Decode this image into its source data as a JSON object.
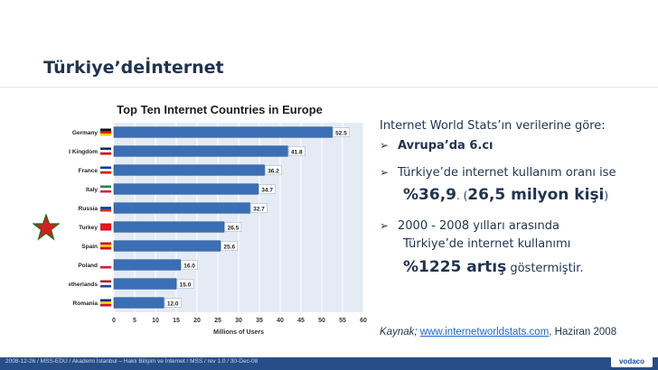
{
  "slide": {
    "title": "Türkiye’deİnternet",
    "intro": "Internet World Stats’ın verilerine göre:",
    "bullet1": "Avrupa’da 6.cı",
    "bullet2_a": "Türkiye’de internet kullanım oranı ise",
    "bullet2_big1": "%36,9",
    "bullet2_mid": ". (",
    "bullet2_big2": "26,5 milyon kişi",
    "bullet2_end": ")",
    "bullet3_a": "2000 - 2008 yılları arasında",
    "bullet3_b": "Türkiye’de internet kullanımı",
    "bullet3_big": "%1225 artış",
    "bullet3_end": " göstermiştir.",
    "source_label": "Kaynak;",
    "source_link": "www.internetworldstats.com",
    "source_end": ", Haziran 2008",
    "footer_text": "2008-12-26 / MSS-EDU / Akademi İstanbul – Haklı Bilişim ve İnternet / MSS / rev 1.0 / 30-Dec-08",
    "logo_text": "vodaco",
    "arrow_icon": "➢",
    "accent_color": "#1f3450",
    "footer_color": "#274e87"
  },
  "chart_data": {
    "type": "bar",
    "orientation": "horizontal",
    "title": "Top Ten Internet Countries in Europe",
    "categories": [
      "Germany",
      "United Kingdom",
      "France",
      "Italy",
      "Russia",
      "Turkey",
      "Spain",
      "Poland",
      "Netherlands",
      "Romania"
    ],
    "values": [
      52.5,
      41.8,
      36.2,
      34.7,
      32.7,
      26.5,
      25.6,
      16.0,
      15.0,
      12.0
    ],
    "value_labels": [
      "52.5",
      "41.8",
      "36.2",
      "34.7",
      "32.7",
      "26.5",
      "25.6",
      "16.0",
      "15.0",
      "12.0"
    ],
    "xlabel": "Millions of Users",
    "xlim": [
      0,
      60
    ],
    "xticks": [
      "0",
      "5",
      "10",
      "15",
      "20",
      "25",
      "30",
      "35",
      "40",
      "45",
      "50",
      "55",
      "60"
    ],
    "grid": true
  }
}
